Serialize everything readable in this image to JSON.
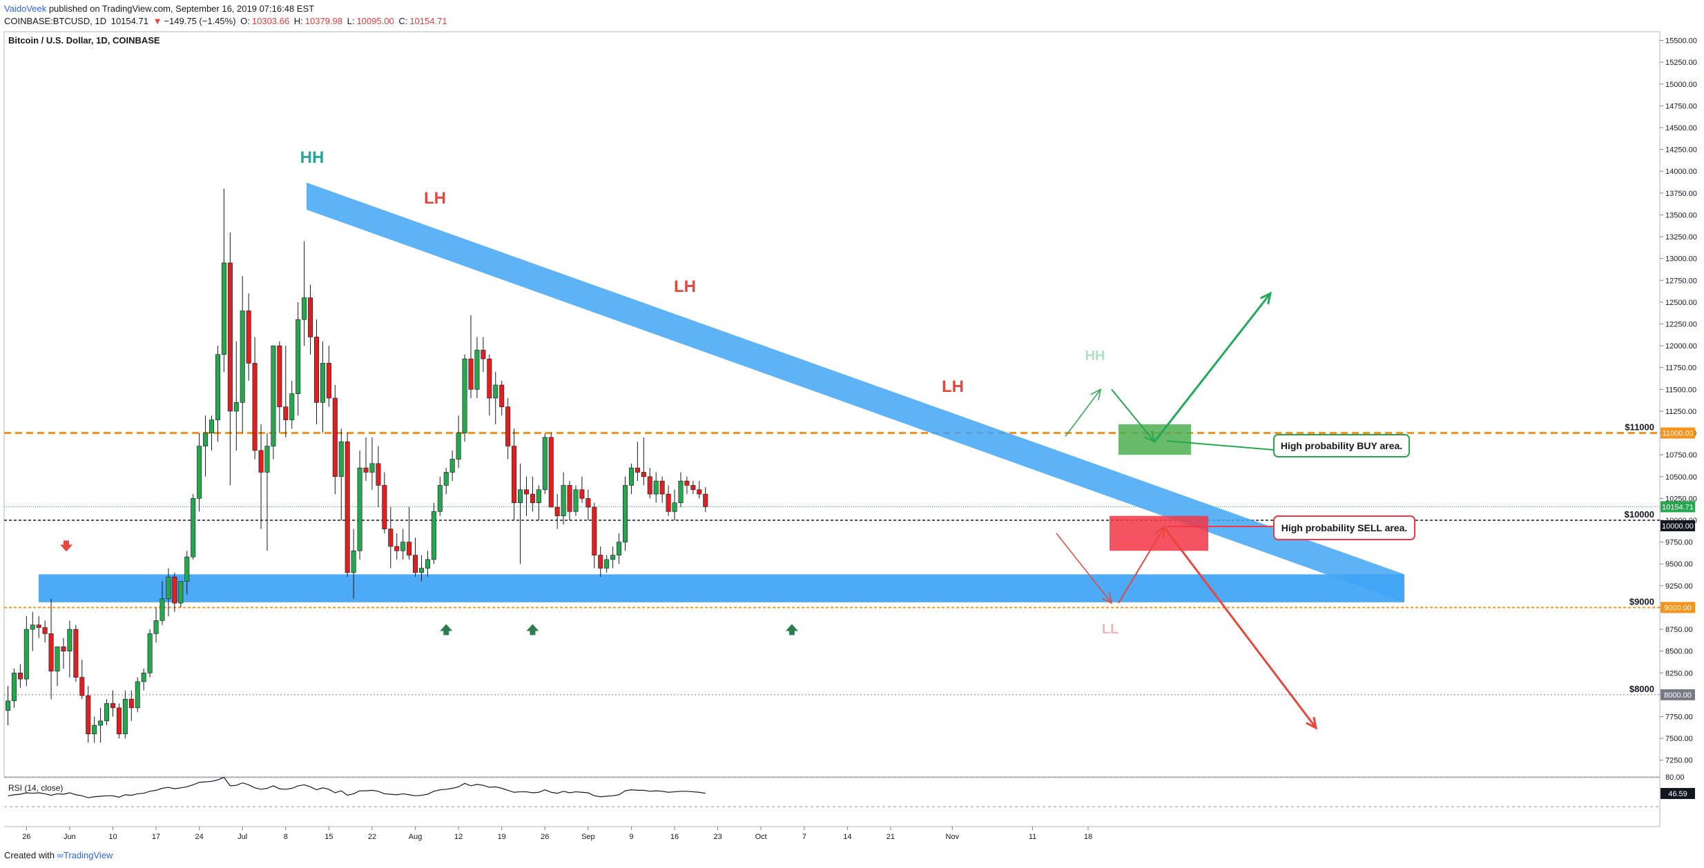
{
  "header": {
    "author": "VaidoVeek",
    "published": "published on TradingView.com, September 16, 2019 07:16:48 EST",
    "symbol": "COINBASE:BTCUSD, 1D",
    "last": "10154.71",
    "change": "−149.75 (−1.45%)",
    "o_label": "O:",
    "o": "10303.66",
    "h_label": "H:",
    "h": "10379.98",
    "l_label": "L:",
    "l": "10095.00",
    "c_label": "C:",
    "c": "10154.71"
  },
  "footer": {
    "created": "Created with",
    "brand": "TradingView"
  },
  "colors": {
    "up": "#26a64d",
    "down": "#e01f1f",
    "band": "#42a5f5",
    "orange": "#f7931a",
    "buy": "#4caf50",
    "sell": "#f23645"
  },
  "chart_data": {
    "type": "candlestick",
    "title": "Bitcoin / U.S. Dollar, 1D, COINBASE",
    "ylim": [
      7000,
      15600
    ],
    "y_ticks": [
      "15500.00",
      "15250.00",
      "15000.00",
      "14750.00",
      "14500.00",
      "14250.00",
      "14000.00",
      "13750.00",
      "13500.00",
      "13250.00",
      "13000.00",
      "12750.00",
      "12500.00",
      "12250.00",
      "12000.00",
      "11750.00",
      "11500.00",
      "11250.00",
      "11000.00",
      "10750.00",
      "10500.00",
      "10250.00",
      "10000.00",
      "9750.00",
      "9500.00",
      "9250.00",
      "9000.00",
      "8750.00",
      "8500.00",
      "8250.00",
      "8000.00",
      "7750.00",
      "7500.00",
      "7250.00"
    ],
    "x_ticks": [
      "26",
      "Jun",
      "10",
      "17",
      "24",
      "Jul",
      "8",
      "15",
      "22",
      "Aug",
      "12",
      "19",
      "26",
      "Sep",
      "9",
      "16",
      "23",
      "Oct",
      "7",
      "14",
      "21",
      "Nov",
      "11",
      "18"
    ],
    "candles": [
      {
        "o": 7820,
        "h": 8100,
        "l": 7650,
        "c": 7930
      },
      {
        "o": 7930,
        "h": 8300,
        "l": 7850,
        "c": 8250
      },
      {
        "o": 8250,
        "h": 8350,
        "l": 8080,
        "c": 8180
      },
      {
        "o": 8180,
        "h": 8900,
        "l": 8100,
        "c": 8750
      },
      {
        "o": 8750,
        "h": 8950,
        "l": 8500,
        "c": 8800
      },
      {
        "o": 8800,
        "h": 8900,
        "l": 8650,
        "c": 8770
      },
      {
        "o": 8770,
        "h": 8850,
        "l": 8600,
        "c": 8700
      },
      {
        "o": 8700,
        "h": 9100,
        "l": 7950,
        "c": 8270
      },
      {
        "o": 8270,
        "h": 8550,
        "l": 8100,
        "c": 8550
      },
      {
        "o": 8550,
        "h": 8650,
        "l": 8300,
        "c": 8500
      },
      {
        "o": 8500,
        "h": 8850,
        "l": 8200,
        "c": 8750
      },
      {
        "o": 8750,
        "h": 8800,
        "l": 8150,
        "c": 8200
      },
      {
        "o": 8200,
        "h": 8400,
        "l": 7950,
        "c": 7990
      },
      {
        "o": 7990,
        "h": 8100,
        "l": 7450,
        "c": 7550
      },
      {
        "o": 7550,
        "h": 7750,
        "l": 7450,
        "c": 7650
      },
      {
        "o": 7650,
        "h": 7850,
        "l": 7450,
        "c": 7700
      },
      {
        "o": 7700,
        "h": 7950,
        "l": 7650,
        "c": 7900
      },
      {
        "o": 7900,
        "h": 8050,
        "l": 7750,
        "c": 7850
      },
      {
        "o": 7850,
        "h": 7900,
        "l": 7500,
        "c": 7550
      },
      {
        "o": 7550,
        "h": 8050,
        "l": 7500,
        "c": 7950
      },
      {
        "o": 7950,
        "h": 8050,
        "l": 7700,
        "c": 7850
      },
      {
        "o": 7850,
        "h": 8200,
        "l": 7800,
        "c": 8150
      },
      {
        "o": 8150,
        "h": 8300,
        "l": 8050,
        "c": 8250
      },
      {
        "o": 8250,
        "h": 8750,
        "l": 8200,
        "c": 8700
      },
      {
        "o": 8700,
        "h": 9000,
        "l": 8600,
        "c": 8850
      },
      {
        "o": 8850,
        "h": 9300,
        "l": 8800,
        "c": 9100
      },
      {
        "o": 9100,
        "h": 9450,
        "l": 8900,
        "c": 9350
      },
      {
        "o": 9350,
        "h": 9400,
        "l": 8950,
        "c": 9050
      },
      {
        "o": 9050,
        "h": 9300,
        "l": 9000,
        "c": 9300
      },
      {
        "o": 9300,
        "h": 9650,
        "l": 9150,
        "c": 9580
      },
      {
        "o": 9580,
        "h": 10300,
        "l": 9550,
        "c": 10250
      },
      {
        "o": 10250,
        "h": 11000,
        "l": 10100,
        "c": 10850
      },
      {
        "o": 10850,
        "h": 11200,
        "l": 10500,
        "c": 11000
      },
      {
        "o": 11000,
        "h": 11200,
        "l": 10800,
        "c": 11150
      },
      {
        "o": 11150,
        "h": 12000,
        "l": 10900,
        "c": 11900
      },
      {
        "o": 11900,
        "h": 13800,
        "l": 11700,
        "c": 12950
      },
      {
        "o": 12950,
        "h": 13300,
        "l": 10400,
        "c": 11250
      },
      {
        "o": 11250,
        "h": 12050,
        "l": 10800,
        "c": 11350
      },
      {
        "o": 11350,
        "h": 12800,
        "l": 11000,
        "c": 12400
      },
      {
        "o": 12400,
        "h": 12600,
        "l": 11600,
        "c": 11800
      },
      {
        "o": 11800,
        "h": 12100,
        "l": 10700,
        "c": 10800
      },
      {
        "o": 10800,
        "h": 11100,
        "l": 9900,
        "c": 10550
      },
      {
        "o": 10550,
        "h": 11000,
        "l": 9650,
        "c": 10850
      },
      {
        "o": 10850,
        "h": 12000,
        "l": 10700,
        "c": 12000
      },
      {
        "o": 12000,
        "h": 12050,
        "l": 11000,
        "c": 11300
      },
      {
        "o": 11300,
        "h": 12000,
        "l": 10950,
        "c": 11150
      },
      {
        "o": 11150,
        "h": 11600,
        "l": 11050,
        "c": 11450
      },
      {
        "o": 11450,
        "h": 12500,
        "l": 11200,
        "c": 12300
      },
      {
        "o": 12300,
        "h": 13200,
        "l": 12000,
        "c": 12550
      },
      {
        "o": 12550,
        "h": 12700,
        "l": 11900,
        "c": 12100
      },
      {
        "o": 12100,
        "h": 12300,
        "l": 11100,
        "c": 11350
      },
      {
        "o": 11350,
        "h": 12050,
        "l": 11000,
        "c": 11800
      },
      {
        "o": 11800,
        "h": 12000,
        "l": 11300,
        "c": 11400
      },
      {
        "o": 11400,
        "h": 11550,
        "l": 10300,
        "c": 10500
      },
      {
        "o": 10500,
        "h": 11050,
        "l": 10000,
        "c": 10900
      },
      {
        "o": 10900,
        "h": 11000,
        "l": 9350,
        "c": 9400
      },
      {
        "o": 9400,
        "h": 9900,
        "l": 9100,
        "c": 9650
      },
      {
        "o": 9650,
        "h": 10800,
        "l": 9550,
        "c": 10600
      },
      {
        "o": 10600,
        "h": 10950,
        "l": 10450,
        "c": 10550
      },
      {
        "o": 10550,
        "h": 10950,
        "l": 10350,
        "c": 10650
      },
      {
        "o": 10650,
        "h": 10850,
        "l": 10150,
        "c": 10400
      },
      {
        "o": 10400,
        "h": 10550,
        "l": 9850,
        "c": 9900
      },
      {
        "o": 9900,
        "h": 10150,
        "l": 9450,
        "c": 9700
      },
      {
        "o": 9700,
        "h": 9850,
        "l": 9550,
        "c": 9650
      },
      {
        "o": 9650,
        "h": 9900,
        "l": 9550,
        "c": 9750
      },
      {
        "o": 9750,
        "h": 10150,
        "l": 9550,
        "c": 9600
      },
      {
        "o": 9600,
        "h": 9800,
        "l": 9350,
        "c": 9400
      },
      {
        "o": 9400,
        "h": 9600,
        "l": 9300,
        "c": 9450
      },
      {
        "o": 9450,
        "h": 9650,
        "l": 9350,
        "c": 9550
      },
      {
        "o": 9550,
        "h": 10200,
        "l": 9500,
        "c": 10100
      },
      {
        "o": 10100,
        "h": 10500,
        "l": 10050,
        "c": 10400
      },
      {
        "o": 10400,
        "h": 10600,
        "l": 10300,
        "c": 10550
      },
      {
        "o": 10550,
        "h": 10800,
        "l": 10450,
        "c": 10700
      },
      {
        "o": 10700,
        "h": 11200,
        "l": 10600,
        "c": 11000
      },
      {
        "o": 11000,
        "h": 11900,
        "l": 10900,
        "c": 11850
      },
      {
        "o": 11850,
        "h": 12350,
        "l": 11400,
        "c": 11500
      },
      {
        "o": 11500,
        "h": 12100,
        "l": 11400,
        "c": 11950
      },
      {
        "o": 11950,
        "h": 12100,
        "l": 11700,
        "c": 11850
      },
      {
        "o": 11850,
        "h": 11900,
        "l": 11200,
        "c": 11400
      },
      {
        "o": 11400,
        "h": 11700,
        "l": 11100,
        "c": 11550
      },
      {
        "o": 11550,
        "h": 11600,
        "l": 11200,
        "c": 11300
      },
      {
        "o": 11300,
        "h": 11400,
        "l": 10700,
        "c": 10850
      },
      {
        "o": 10850,
        "h": 11050,
        "l": 10000,
        "c": 10200
      },
      {
        "o": 10200,
        "h": 10650,
        "l": 9500,
        "c": 10350
      },
      {
        "o": 10350,
        "h": 10500,
        "l": 10050,
        "c": 10300
      },
      {
        "o": 10300,
        "h": 10500,
        "l": 10100,
        "c": 10200
      },
      {
        "o": 10200,
        "h": 10400,
        "l": 10000,
        "c": 10350
      },
      {
        "o": 10350,
        "h": 11000,
        "l": 10300,
        "c": 10950
      },
      {
        "o": 10950,
        "h": 11000,
        "l": 10200,
        "c": 10150
      },
      {
        "o": 10150,
        "h": 10300,
        "l": 9900,
        "c": 10050
      },
      {
        "o": 10050,
        "h": 10550,
        "l": 9950,
        "c": 10400
      },
      {
        "o": 10400,
        "h": 10450,
        "l": 10000,
        "c": 10100
      },
      {
        "o": 10100,
        "h": 10400,
        "l": 10050,
        "c": 10350
      },
      {
        "o": 10350,
        "h": 10500,
        "l": 10200,
        "c": 10250
      },
      {
        "o": 10250,
        "h": 10350,
        "l": 10000,
        "c": 10150
      },
      {
        "o": 10150,
        "h": 10200,
        "l": 9450,
        "c": 9600
      },
      {
        "o": 9600,
        "h": 9700,
        "l": 9350,
        "c": 9450
      },
      {
        "o": 9450,
        "h": 9600,
        "l": 9400,
        "c": 9550
      },
      {
        "o": 9550,
        "h": 9700,
        "l": 9450,
        "c": 9600
      },
      {
        "o": 9600,
        "h": 9850,
        "l": 9500,
        "c": 9750
      },
      {
        "o": 9750,
        "h": 10500,
        "l": 9650,
        "c": 10400
      },
      {
        "o": 10400,
        "h": 10650,
        "l": 10300,
        "c": 10600
      },
      {
        "o": 10600,
        "h": 10900,
        "l": 10450,
        "c": 10550
      },
      {
        "o": 10550,
        "h": 10950,
        "l": 10400,
        "c": 10500
      },
      {
        "o": 10500,
        "h": 10600,
        "l": 10250,
        "c": 10300
      },
      {
        "o": 10300,
        "h": 10550,
        "l": 10200,
        "c": 10450
      },
      {
        "o": 10450,
        "h": 10500,
        "l": 10200,
        "c": 10300
      },
      {
        "o": 10300,
        "h": 10400,
        "l": 10050,
        "c": 10100
      },
      {
        "o": 10100,
        "h": 10350,
        "l": 10000,
        "c": 10200
      },
      {
        "o": 10200,
        "h": 10550,
        "l": 10150,
        "c": 10450
      },
      {
        "o": 10450,
        "h": 10500,
        "l": 10300,
        "c": 10400
      },
      {
        "o": 10400,
        "h": 10450,
        "l": 10300,
        "c": 10350
      },
      {
        "o": 10350,
        "h": 10450,
        "l": 10250,
        "c": 10300
      },
      {
        "o": 10300,
        "h": 10380,
        "l": 10095,
        "c": 10155
      }
    ],
    "rsi": {
      "label": "RSI (14, close)",
      "ticks": [
        "80.00",
        "46.59"
      ],
      "last": "46.59",
      "values": [
        42,
        44,
        45,
        48,
        47,
        48,
        46,
        43,
        46,
        45,
        48,
        44,
        42,
        38,
        40,
        41,
        42,
        42,
        39,
        44,
        43,
        46,
        47,
        51,
        53,
        57,
        59,
        56,
        58,
        60,
        64,
        69,
        70,
        71,
        74,
        79,
        62,
        63,
        68,
        64,
        58,
        55,
        57,
        62,
        56,
        55,
        57,
        62,
        64,
        60,
        54,
        58,
        55,
        48,
        52,
        43,
        46,
        52,
        52,
        53,
        51,
        46,
        45,
        44,
        46,
        44,
        42,
        43,
        45,
        51,
        54,
        55,
        57,
        60,
        67,
        62,
        65,
        63,
        59,
        60,
        57,
        53,
        49,
        50,
        50,
        48,
        49,
        54,
        49,
        47,
        51,
        48,
        50,
        49,
        48,
        42,
        40,
        41,
        42,
        44,
        52,
        54,
        53,
        53,
        51,
        52,
        51,
        49,
        50,
        51,
        51,
        50,
        49,
        47
      ]
    }
  },
  "price_labels": {
    "11000": "$11000",
    "10000": "$10000",
    "9000": "$9000",
    "8000": "$8000",
    "tag_11000": "11000.00",
    "tag_last": "10154.71",
    "tag_10000": "10000.00",
    "tag_9000": "9000.00",
    "tag_8000": "8000.00"
  },
  "annotations": {
    "hh1": "HH",
    "lh1": "LH",
    "lh2": "LH",
    "lh3": "LH",
    "hh2": "HH",
    "ll": "LL",
    "buy_area": "High probability BUY area.",
    "sell_area": "High probability SELL area."
  }
}
